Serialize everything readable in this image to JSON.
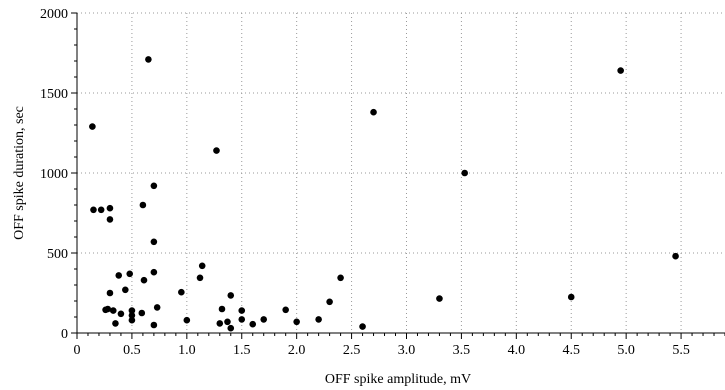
{
  "chart_data": {
    "type": "scatter",
    "title": "",
    "xlabel": "OFF spike amplitude, mV",
    "ylabel": "OFF spike duration, sec",
    "xlim": [
      0,
      5.9
    ],
    "ylim": [
      0,
      2000
    ],
    "xticks": [
      0,
      0.5,
      1.0,
      1.5,
      2.0,
      2.5,
      3.0,
      3.5,
      4.0,
      4.5,
      5.0,
      5.5
    ],
    "xtick_labels": [
      "0",
      "0.5",
      "1.0",
      "1.5",
      "2.0",
      "2.5",
      "3.0",
      "3.5",
      "4.0",
      "4.5",
      "5.0",
      "5.5"
    ],
    "yticks": [
      0,
      500,
      1000,
      1500,
      2000
    ],
    "ytick_labels": [
      "0",
      "500",
      "1000",
      "1500",
      "2000"
    ],
    "grid": true,
    "series": [
      {
        "points": [
          [
            0.14,
            1290
          ],
          [
            0.15,
            770
          ],
          [
            0.22,
            770
          ],
          [
            0.3,
            780
          ],
          [
            0.3,
            710
          ],
          [
            0.26,
            145
          ],
          [
            0.28,
            150
          ],
          [
            0.3,
            250
          ],
          [
            0.33,
            140
          ],
          [
            0.35,
            60
          ],
          [
            0.38,
            360
          ],
          [
            0.4,
            120
          ],
          [
            0.44,
            270
          ],
          [
            0.48,
            370
          ],
          [
            0.5,
            140
          ],
          [
            0.5,
            110
          ],
          [
            0.5,
            80
          ],
          [
            0.59,
            125
          ],
          [
            0.6,
            800
          ],
          [
            0.61,
            330
          ],
          [
            0.65,
            1710
          ],
          [
            0.7,
            920
          ],
          [
            0.7,
            570
          ],
          [
            0.7,
            380
          ],
          [
            0.7,
            50
          ],
          [
            0.73,
            160
          ],
          [
            0.95,
            255
          ],
          [
            1.0,
            80
          ],
          [
            1.12,
            345
          ],
          [
            1.14,
            420
          ],
          [
            1.27,
            1140
          ],
          [
            1.3,
            60
          ],
          [
            1.32,
            150
          ],
          [
            1.37,
            70
          ],
          [
            1.4,
            235
          ],
          [
            1.4,
            30
          ],
          [
            1.5,
            140
          ],
          [
            1.5,
            85
          ],
          [
            1.6,
            55
          ],
          [
            1.7,
            85
          ],
          [
            1.9,
            145
          ],
          [
            2.0,
            70
          ],
          [
            2.2,
            85
          ],
          [
            2.3,
            195
          ],
          [
            2.4,
            345
          ],
          [
            2.6,
            40
          ],
          [
            2.7,
            1380
          ],
          [
            3.3,
            215
          ],
          [
            3.53,
            1000
          ],
          [
            4.5,
            225
          ],
          [
            4.95,
            1640
          ],
          [
            5.45,
            480
          ]
        ]
      }
    ]
  }
}
